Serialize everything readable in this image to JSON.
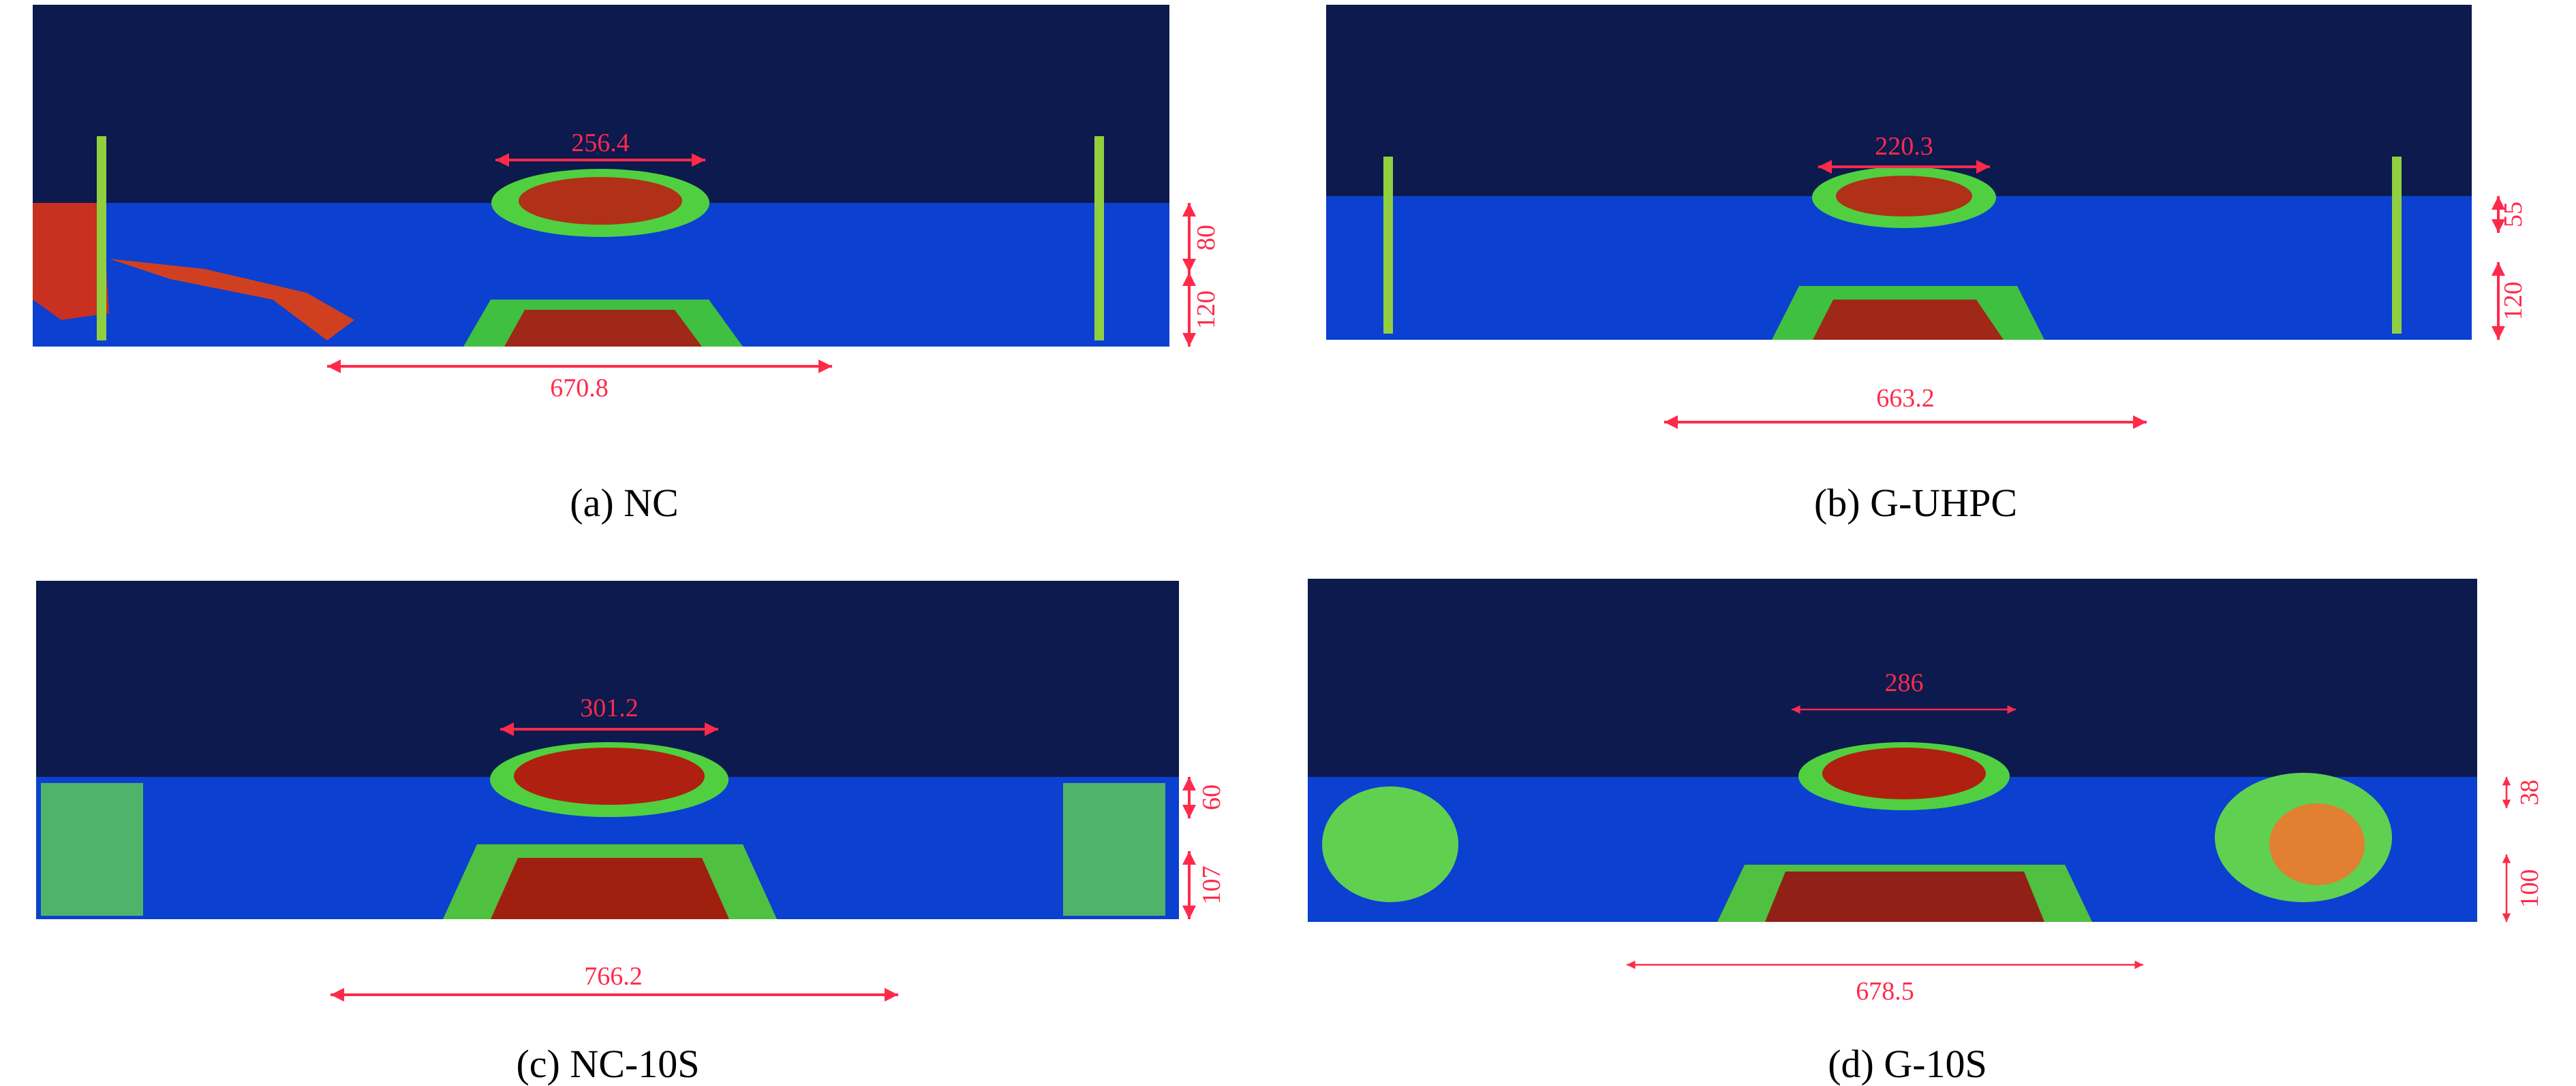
{
  "panels": [
    {
      "caption": "(a) NC",
      "top_width": "256.4",
      "bottom_width": "670.8",
      "upper_depth": "80",
      "lower_depth": "120"
    },
    {
      "caption": "(b) G-UHPC",
      "top_width": "220.3",
      "bottom_width": "663.2",
      "upper_depth": "55",
      "lower_depth": "120"
    },
    {
      "caption": "(c) NC-10S",
      "top_width": "301.2",
      "bottom_width": "766.2",
      "upper_depth": "60",
      "lower_depth": "107"
    },
    {
      "caption": "(d) G-10S",
      "top_width": "286",
      "bottom_width": "678.5",
      "upper_depth": "38",
      "lower_depth": "100"
    }
  ]
}
